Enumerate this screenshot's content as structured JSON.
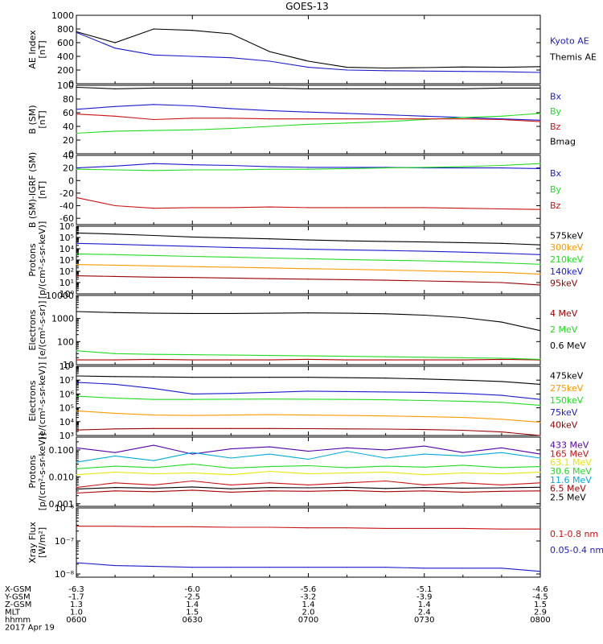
{
  "title": "GOES-13",
  "colors": {
    "black": "#000000",
    "blue": "#1a1acc",
    "green": "#22dd22",
    "red": "#cc1111",
    "orange": "#ff9900",
    "yellow": "#e6e600",
    "cyan": "#00aadd",
    "navy": "#000088",
    "purple": "#5500aa",
    "brown": "#990000",
    "darkred": "#aa0000"
  },
  "time_axis": {
    "ticks": [
      "0600",
      "0630",
      "0700",
      "0730",
      "0800"
    ],
    "rows": [
      {
        "label": "X-GSM",
        "values": [
          "-6.3",
          "-6.0",
          "-5.6",
          "-5.1",
          "-4.6"
        ]
      },
      {
        "label": "Y-GSM",
        "values": [
          "-1.7",
          "-2.5",
          "-3.2",
          "-3.9",
          "-4.5"
        ]
      },
      {
        "label": "Z-GSM",
        "values": [
          "1.3",
          "1.4",
          "1.4",
          "1.4",
          "1.5"
        ]
      },
      {
        "label": "MLT",
        "values": [
          "1.0",
          "1.5",
          "2.0",
          "2.4",
          "2.9"
        ]
      },
      {
        "label": "hhmm",
        "values": [
          "0600",
          "0630",
          "0700",
          "0730",
          "0800"
        ]
      }
    ],
    "date": "2017 Apr 19"
  },
  "chart_data": [
    {
      "type": "line",
      "scale": "linear",
      "ylabel": [
        "AE Index",
        "[nT]"
      ],
      "ylim": [
        0,
        1000
      ],
      "yticks": [
        0,
        200,
        400,
        600,
        800,
        1000
      ],
      "ytick_labels": [
        "0",
        "200",
        "400",
        "600",
        "800",
        "1000"
      ],
      "x": [
        "0600",
        "0610",
        "0620",
        "0630",
        "0640",
        "0650",
        "0700",
        "0710",
        "0720",
        "0730",
        "0740",
        "0750",
        "0800"
      ],
      "series": [
        {
          "name": "Kyoto AE",
          "color": "blue",
          "values": [
            750,
            520,
            420,
            400,
            380,
            330,
            240,
            200,
            190,
            185,
            180,
            175,
            165
          ]
        },
        {
          "name": "Themis AE",
          "color": "black",
          "values": [
            760,
            600,
            800,
            780,
            730,
            470,
            330,
            240,
            230,
            235,
            245,
            240,
            250
          ]
        }
      ]
    },
    {
      "type": "line",
      "scale": "linear",
      "ylabel": [
        "B (SM)",
        "[nT]"
      ],
      "ylim": [
        0,
        100
      ],
      "yticks": [
        0,
        20,
        40,
        60,
        80,
        100
      ],
      "ytick_labels": [
        "0",
        "20",
        "40",
        "60",
        "80",
        "100"
      ],
      "x": [
        "0600",
        "0610",
        "0620",
        "0630",
        "0640",
        "0650",
        "0700",
        "0710",
        "0720",
        "0730",
        "0740",
        "0750",
        "0800"
      ],
      "series": [
        {
          "name": "Bx",
          "color": "blue",
          "values": [
            65,
            69,
            72,
            70,
            66,
            63,
            61,
            59,
            57,
            55,
            53,
            51,
            49
          ]
        },
        {
          "name": "By",
          "color": "green",
          "values": [
            30,
            33,
            34,
            35,
            37,
            40,
            43,
            45,
            47,
            50,
            53,
            55,
            59
          ]
        },
        {
          "name": "Bz",
          "color": "red",
          "values": [
            58,
            55,
            50,
            52,
            52,
            51,
            51,
            51,
            51,
            51,
            51,
            50,
            47
          ]
        },
        {
          "name": "Bmag",
          "color": "black",
          "values": [
            97,
            95,
            96,
            96,
            96,
            96,
            95,
            95,
            95,
            95,
            95,
            96,
            96
          ]
        }
      ]
    },
    {
      "type": "line",
      "scale": "linear",
      "ylabel": [
        "B (SM)-IGRF (SM)",
        "[nT]"
      ],
      "ylim": [
        -70,
        40
      ],
      "yticks": [
        -60,
        -40,
        -20,
        0,
        20,
        40
      ],
      "ytick_labels": [
        "-60",
        "-40",
        "-20",
        "0",
        "20",
        "40"
      ],
      "x": [
        "0600",
        "0610",
        "0620",
        "0630",
        "0640",
        "0650",
        "0700",
        "0710",
        "0720",
        "0730",
        "0740",
        "0750",
        "0800"
      ],
      "series": [
        {
          "name": "Bx",
          "color": "blue",
          "values": [
            20,
            23,
            27,
            25,
            24,
            22,
            21,
            21,
            21,
            20,
            20,
            20,
            19
          ]
        },
        {
          "name": "By",
          "color": "green",
          "values": [
            18,
            17,
            16,
            17,
            17,
            18,
            18,
            19,
            20,
            21,
            22,
            24,
            27
          ]
        },
        {
          "name": "Bz",
          "color": "red",
          "values": [
            -27,
            -40,
            -44,
            -43,
            -43,
            -42,
            -43,
            -43,
            -43,
            -43,
            -44,
            -45,
            -46
          ]
        }
      ]
    },
    {
      "type": "line",
      "scale": "log",
      "ylabel": [
        "Protons",
        "[p/(cm²-s-sr-keV)]"
      ],
      "ylim": [
        1,
        1000000
      ],
      "yticks": [
        1,
        10,
        100,
        1000,
        10000,
        100000,
        1000000
      ],
      "ytick_labels": [
        "10⁰",
        "10¹",
        "10²",
        "10³",
        "10⁴",
        "10⁵",
        "10⁶"
      ],
      "x": [
        "0600",
        "0610",
        "0620",
        "0630",
        "0640",
        "0650",
        "0700",
        "0710",
        "0720",
        "0730",
        "0740",
        "0750",
        "0800"
      ],
      "series": [
        {
          "name": "575keV",
          "color": "black",
          "values": [
            250000,
            200000,
            150000,
            110000,
            90000,
            75000,
            60000,
            50000,
            45000,
            40000,
            35000,
            30000,
            22000
          ]
        },
        {
          "name": "300keV",
          "color": "orange",
          "values": [
            400,
            350,
            300,
            260,
            230,
            200,
            170,
            150,
            130,
            110,
            90,
            80,
            55
          ]
        },
        {
          "name": "210keV",
          "color": "green",
          "values": [
            3500,
            3000,
            2500,
            2100,
            1800,
            1500,
            1300,
            1100,
            950,
            850,
            700,
            550,
            420
          ]
        },
        {
          "name": "140keV",
          "color": "blue",
          "values": [
            30000,
            25000,
            20000,
            16000,
            13000,
            11000,
            9000,
            8000,
            7000,
            6000,
            5000,
            4000,
            3000
          ]
        },
        {
          "name": "95keV",
          "color": "brown",
          "values": [
            40,
            35,
            30,
            28,
            25,
            22,
            20,
            18,
            16,
            14,
            12,
            10,
            6
          ]
        }
      ]
    },
    {
      "type": "line",
      "scale": "log",
      "ylabel": [
        "Electrons",
        "[e/(cm²-s-sr)]"
      ],
      "ylim": [
        10,
        10000
      ],
      "yticks": [
        10,
        100,
        1000,
        10000
      ],
      "ytick_labels": [
        "10",
        "100",
        "1000",
        "10000"
      ],
      "x": [
        "0600",
        "0610",
        "0620",
        "0630",
        "0640",
        "0650",
        "0700",
        "0710",
        "0720",
        "0730",
        "0740",
        "0750",
        "0800"
      ],
      "series": [
        {
          "name": "4 MeV",
          "color": "darkred",
          "values": [
            16,
            16,
            17,
            16,
            16,
            16,
            17,
            16,
            16,
            16,
            16,
            17,
            16
          ]
        },
        {
          "name": "2 MeV",
          "color": "green",
          "values": [
            40,
            30,
            28,
            27,
            26,
            25,
            24,
            23,
            22,
            21,
            20,
            19,
            17
          ]
        },
        {
          "name": "0.6 MeV",
          "color": "black",
          "values": [
            2000,
            1800,
            1700,
            1650,
            1650,
            1700,
            1750,
            1700,
            1600,
            1400,
            1100,
            700,
            300
          ]
        }
      ]
    },
    {
      "type": "line",
      "scale": "log",
      "ylabel": [
        "Electrons",
        "[e/(cm²-s-sr-keV)]"
      ],
      "ylim": [
        1000,
        100000000
      ],
      "yticks": [
        1000,
        10000,
        100000,
        1000000,
        10000000,
        100000000
      ],
      "ytick_labels": [
        "10³",
        "10⁴",
        "10⁵",
        "10⁶",
        "10⁷",
        "10⁸"
      ],
      "x": [
        "0600",
        "0610",
        "0620",
        "0630",
        "0640",
        "0650",
        "0700",
        "0710",
        "0720",
        "0730",
        "0740",
        "0750",
        "0800"
      ],
      "series": [
        {
          "name": "475keV",
          "color": "black",
          "values": [
            20000000,
            18000000,
            17000000,
            16000000,
            16000000,
            16000000,
            16000000,
            15000000,
            14000000,
            12000000,
            10000000,
            8000000,
            5000000
          ]
        },
        {
          "name": "275keV",
          "color": "orange",
          "values": [
            60000,
            40000,
            30000,
            28000,
            30000,
            32000,
            30000,
            28000,
            26000,
            23000,
            20000,
            15000,
            9000
          ]
        },
        {
          "name": "150keV",
          "color": "green",
          "values": [
            700000,
            500000,
            400000,
            400000,
            420000,
            430000,
            420000,
            400000,
            380000,
            340000,
            300000,
            250000,
            150000
          ]
        },
        {
          "name": "75keV",
          "color": "blue",
          "values": [
            7000000,
            5000000,
            2500000,
            1000000,
            1100000,
            1300000,
            1600000,
            1500000,
            1400000,
            1300000,
            1100000,
            800000,
            400000
          ]
        },
        {
          "name": "40keV",
          "color": "brown",
          "values": [
            2500,
            3000,
            3200,
            3200,
            3200,
            3200,
            3100,
            3000,
            2900,
            2700,
            2400,
            1800,
            1000
          ]
        }
      ]
    },
    {
      "type": "line",
      "scale": "log",
      "ylabel": [
        "Protons",
        "[p/(cm²-s-sr-keV)]"
      ],
      "ylim": [
        0.0008,
        0.3
      ],
      "yticks": [
        0.001,
        0.01,
        0.1
      ],
      "ytick_labels": [
        "0.001",
        "0.010",
        "0.100"
      ],
      "x": [
        "0600",
        "0610",
        "0620",
        "0630",
        "0640",
        "0650",
        "0700",
        "0710",
        "0720",
        "0730",
        "0740",
        "0750",
        "0800"
      ],
      "series": [
        {
          "name": "433 MeV",
          "color": "purple",
          "values": [
            0.12,
            0.08,
            0.15,
            0.07,
            0.11,
            0.13,
            0.09,
            0.12,
            0.1,
            0.14,
            0.08,
            0.12,
            0.07
          ]
        },
        {
          "name": "165 MeV",
          "color": "red",
          "values": [
            0.004,
            0.006,
            0.005,
            0.007,
            0.005,
            0.006,
            0.005,
            0.006,
            0.007,
            0.005,
            0.006,
            0.005,
            0.006
          ]
        },
        {
          "name": "63.1 MeV",
          "color": "yellow",
          "values": [
            0.012,
            0.015,
            0.013,
            0.014,
            0.012,
            0.016,
            0.013,
            0.014,
            0.015,
            0.012,
            0.014,
            0.013,
            0.015
          ]
        },
        {
          "name": "30.6 MeV",
          "color": "green",
          "values": [
            0.02,
            0.025,
            0.022,
            0.03,
            0.021,
            0.024,
            0.026,
            0.022,
            0.025,
            0.023,
            0.027,
            0.022,
            0.024
          ]
        },
        {
          "name": "11.6 MeV",
          "color": "cyan",
          "values": [
            0.035,
            0.06,
            0.04,
            0.08,
            0.05,
            0.07,
            0.045,
            0.09,
            0.05,
            0.07,
            0.06,
            0.08,
            0.05
          ]
        },
        {
          "name": "6.5 MeV",
          "color": "darkred",
          "values": [
            0.0025,
            0.003,
            0.0028,
            0.0032,
            0.0027,
            0.003,
            0.0029,
            0.0031,
            0.0028,
            0.003,
            0.0027,
            0.0029,
            0.003
          ]
        },
        {
          "name": "2.5 MeV",
          "color": "black",
          "values": [
            0.0035,
            0.004,
            0.0038,
            0.0042,
            0.0036,
            0.004,
            0.0039,
            0.0041,
            0.0037,
            0.004,
            0.0038,
            0.0039,
            0.0041
          ]
        }
      ]
    },
    {
      "type": "line",
      "scale": "log",
      "ylabel": [
        "Xray Flux",
        "[W/m²]"
      ],
      "ylim": [
        8e-09,
        1e-06
      ],
      "yticks": [
        1e-08,
        1e-07,
        1e-06
      ],
      "ytick_labels": [
        "10⁻⁸",
        "10⁻⁷",
        "10⁻⁶"
      ],
      "x": [
        "0600",
        "0610",
        "0620",
        "0630",
        "0640",
        "0650",
        "0700",
        "0710",
        "0720",
        "0730",
        "0740",
        "0750",
        "0800"
      ],
      "series": [
        {
          "name": "0.1-0.8 nm",
          "color": "red",
          "values": [
            2.8e-07,
            2.8e-07,
            2.7e-07,
            2.7e-07,
            2.6e-07,
            2.6e-07,
            2.5e-07,
            2.5e-07,
            2.4e-07,
            2.4e-07,
            2.4e-07,
            2.3e-07,
            2.3e-07
          ]
        },
        {
          "name": "0.05-0.4 nm",
          "color": "blue",
          "values": [
            2.2e-08,
            1.8e-08,
            1.7e-08,
            1.6e-08,
            1.6e-08,
            1.6e-08,
            1.6e-08,
            1.6e-08,
            1.6e-08,
            1.5e-08,
            1.5e-08,
            1.5e-08,
            1.2e-08
          ]
        }
      ]
    }
  ]
}
